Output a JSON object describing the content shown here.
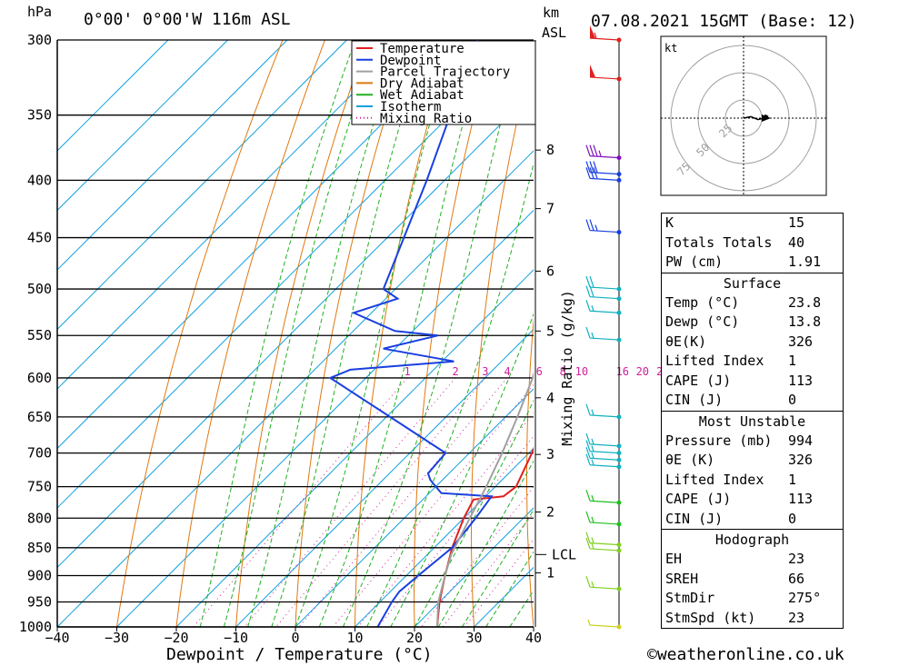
{
  "header": {
    "unit_left": "hPa",
    "location": "0°00' 0°00'W 116m ASL",
    "unit_km": "km",
    "unit_asl": "ASL",
    "datetime": "07.08.2021 15GMT (Base: 12)"
  },
  "legend": {
    "items": [
      {
        "label": "Temperature",
        "color": "#e02020",
        "style": "solid"
      },
      {
        "label": "Dewpoint",
        "color": "#1a3fe0",
        "style": "solid"
      },
      {
        "label": "Parcel Trajectory",
        "color": "#a0a0a0",
        "style": "solid"
      },
      {
        "label": "Dry Adiabat",
        "color": "#e07810",
        "style": "solid"
      },
      {
        "label": "Wet Adiabat",
        "color": "#20b020",
        "style": "solid"
      },
      {
        "label": "Isotherm",
        "color": "#10a0e0",
        "style": "solid"
      },
      {
        "label": "Mixing Ratio",
        "color": "#d0209a",
        "style": "dotted"
      }
    ]
  },
  "chart_data": {
    "type": "line",
    "xlabel": "Dewpoint / Temperature (°C)",
    "ylabel_right": "Mixing Ratio (g/kg)",
    "x_ticks": [
      "−40",
      "−30",
      "−20",
      "−10",
      "0",
      "10",
      "20",
      "30",
      "40"
    ],
    "pressure_ticks": [
      "300",
      "350",
      "400",
      "450",
      "500",
      "550",
      "600",
      "650",
      "700",
      "750",
      "800",
      "850",
      "900",
      "950",
      "1000"
    ],
    "km_ticks": [
      {
        "label": "8",
        "p": 376
      },
      {
        "label": "7",
        "p": 424
      },
      {
        "label": "6",
        "p": 482
      },
      {
        "label": "5",
        "p": 545
      },
      {
        "label": "4",
        "p": 625
      },
      {
        "label": "3",
        "p": 702
      },
      {
        "label": "2",
        "p": 790
      },
      {
        "label": "1",
        "p": 895
      }
    ],
    "lcl_label": "LCL",
    "lcl_p": 862,
    "mixing_ratio_labels": [
      "1",
      "2",
      "3",
      "4",
      "6",
      "8",
      "10",
      "16",
      "20",
      "25"
    ],
    "series": [
      {
        "name": "Temperature",
        "color": "#e02020",
        "points": [
          [
            1000,
            23.8
          ],
          [
            950,
            20
          ],
          [
            900,
            16.5
          ],
          [
            850,
            13
          ],
          [
            800,
            10
          ],
          [
            770,
            8.5
          ],
          [
            765,
            13
          ],
          [
            750,
            13.5
          ],
          [
            700,
            10.5
          ],
          [
            650,
            7
          ],
          [
            600,
            3
          ],
          [
            550,
            -0.5
          ],
          [
            520,
            -3
          ],
          [
            505,
            -4
          ],
          [
            490,
            -5
          ],
          [
            450,
            -10
          ],
          [
            400,
            -17.5
          ],
          [
            350,
            -27
          ],
          [
            300,
            -38
          ]
        ]
      },
      {
        "name": "Dewpoint",
        "color": "#1a3fe0",
        "points": [
          [
            1000,
            13.8
          ],
          [
            950,
            12
          ],
          [
            930,
            11.5
          ],
          [
            900,
            12
          ],
          [
            850,
            13
          ],
          [
            800,
            12
          ],
          [
            765,
            11
          ],
          [
            760,
            2
          ],
          [
            740,
            -2
          ],
          [
            730,
            -3.5
          ],
          [
            700,
            -4
          ],
          [
            600,
            -36
          ],
          [
            590,
            -34
          ],
          [
            580,
            -18
          ],
          [
            565,
            -32
          ],
          [
            550,
            -25
          ],
          [
            545,
            -33
          ],
          [
            525,
            -43
          ],
          [
            510,
            -38
          ],
          [
            500,
            -42
          ],
          [
            400,
            -53
          ],
          [
            350,
            -60
          ],
          [
            310,
            -66
          ],
          [
            300,
            -68
          ]
        ]
      },
      {
        "name": "Parcel Trajectory",
        "color": "#a0a0a0",
        "points": [
          [
            1000,
            23.8
          ],
          [
            950,
            19.8
          ],
          [
            900,
            16.5
          ],
          [
            862,
            14
          ],
          [
            800,
            11
          ],
          [
            750,
            8.5
          ],
          [
            700,
            5.5
          ],
          [
            650,
            2
          ],
          [
            600,
            -2
          ],
          [
            550,
            -7
          ],
          [
            500,
            -12.5
          ],
          [
            450,
            -19
          ],
          [
            400,
            -26
          ],
          [
            350,
            -34
          ],
          [
            300,
            -44
          ]
        ]
      }
    ],
    "wind_barbs": [
      {
        "p": 300,
        "color": "#e02020",
        "kt": 55
      },
      {
        "p": 325,
        "color": "#e02020",
        "kt": 50
      },
      {
        "p": 382,
        "color": "#8010c0",
        "kt": 35
      },
      {
        "p": 395,
        "color": "#1a3fe0",
        "kt": 30
      },
      {
        "p": 400,
        "color": "#1a3fe0",
        "kt": 30
      },
      {
        "p": 445,
        "color": "#1a3fe0",
        "kt": 25
      },
      {
        "p": 500,
        "color": "#10b0c0",
        "kt": 20
      },
      {
        "p": 510,
        "color": "#10b0c0",
        "kt": 20
      },
      {
        "p": 525,
        "color": "#10b0c0",
        "kt": 15
      },
      {
        "p": 555,
        "color": "#10b0c0",
        "kt": 15
      },
      {
        "p": 650,
        "color": "#10b0c0",
        "kt": 15
      },
      {
        "p": 690,
        "color": "#10b0c0",
        "kt": 15
      },
      {
        "p": 700,
        "color": "#10b0c0",
        "kt": 15
      },
      {
        "p": 710,
        "color": "#10b0c0",
        "kt": 15
      },
      {
        "p": 720,
        "color": "#10b0c0",
        "kt": 15
      },
      {
        "p": 775,
        "color": "#20c020",
        "kt": 15
      },
      {
        "p": 810,
        "color": "#20c020",
        "kt": 15
      },
      {
        "p": 845,
        "color": "#80d020",
        "kt": 15
      },
      {
        "p": 855,
        "color": "#80d020",
        "kt": 15
      },
      {
        "p": 925,
        "color": "#80d020",
        "kt": 15
      },
      {
        "p": 1000,
        "color": "#d0d020",
        "kt": 5
      }
    ]
  },
  "hodograph": {
    "unit": "kt",
    "ring_labels": [
      "25",
      "50",
      "75"
    ],
    "points": [
      [
        0,
        0
      ],
      [
        5,
        -1
      ],
      [
        10,
        1
      ],
      [
        14,
        0
      ],
      [
        15,
        -2
      ],
      [
        17,
        -1
      ]
    ]
  },
  "indices": {
    "top": [
      {
        "label": "K",
        "value": "15"
      },
      {
        "label": "Totals Totals",
        "value": "40"
      },
      {
        "label": "PW (cm)",
        "value": "1.91"
      }
    ],
    "surface": {
      "title": "Surface",
      "rows": [
        {
          "label": "Temp (°C)",
          "value": "23.8"
        },
        {
          "label": "Dewp (°C)",
          "value": "13.8"
        },
        {
          "label": "θE(K)",
          "value": "326"
        },
        {
          "label": "Lifted Index",
          "value": "1"
        },
        {
          "label": "CAPE (J)",
          "value": "113"
        },
        {
          "label": "CIN (J)",
          "value": "0"
        }
      ]
    },
    "most_unstable": {
      "title": "Most Unstable",
      "rows": [
        {
          "label": "Pressure (mb)",
          "value": "994"
        },
        {
          "label": "θE (K)",
          "value": "326"
        },
        {
          "label": "Lifted Index",
          "value": "1"
        },
        {
          "label": "CAPE (J)",
          "value": "113"
        },
        {
          "label": "CIN (J)",
          "value": "0"
        }
      ]
    },
    "hodograph": {
      "title": "Hodograph",
      "rows": [
        {
          "label": "EH",
          "value": "23"
        },
        {
          "label": "SREH",
          "value": "66"
        },
        {
          "label": "StmDir",
          "value": "275°"
        },
        {
          "label": "StmSpd (kt)",
          "value": "23"
        }
      ]
    }
  },
  "footer": {
    "copyright": "©weatheronline.co.uk"
  }
}
